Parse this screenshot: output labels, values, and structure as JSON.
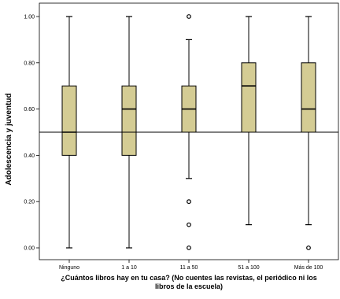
{
  "chart_data": {
    "type": "boxplot",
    "title": "",
    "xlabel": "¿Cuántos libros hay en tu casa? (No cuentes las revistas, el periódico ni los libros de la escuela)",
    "xlabel_lines": [
      "¿Cuántos libros hay en tu casa? (No cuentes las revistas, el periódico ni los",
      "libros de la escuela)"
    ],
    "ylabel": "Adolescencia y juventud",
    "ylim": [
      0,
      1.0
    ],
    "yticks": [
      0.0,
      0.2,
      0.4,
      0.6,
      0.8,
      1.0
    ],
    "ytick_labels": [
      "0.00",
      "0.20",
      "0.40",
      "0.60",
      "0.80",
      "1.00"
    ],
    "reference_line": 0.5,
    "grid": false,
    "box_color": "#d4cc94",
    "categories": [
      "Ninguno",
      "1 a 10",
      "11 a 50",
      "51 a 100",
      "Más de 100"
    ],
    "boxes": [
      {
        "category": "Ninguno",
        "whisker_low": 0.0,
        "q1": 0.4,
        "median": 0.5,
        "q3": 0.7,
        "whisker_high": 1.0,
        "outliers": []
      },
      {
        "category": "1 a 10",
        "whisker_low": 0.0,
        "q1": 0.4,
        "median": 0.6,
        "q3": 0.7,
        "whisker_high": 1.0,
        "outliers": []
      },
      {
        "category": "11 a 50",
        "whisker_low": 0.3,
        "q1": 0.5,
        "median": 0.6,
        "q3": 0.7,
        "whisker_high": 0.9,
        "outliers": [
          0.0,
          0.1,
          0.2,
          1.0
        ]
      },
      {
        "category": "51 a 100",
        "whisker_low": 0.1,
        "q1": 0.5,
        "median": 0.7,
        "q3": 0.8,
        "whisker_high": 1.0,
        "outliers": []
      },
      {
        "category": "Más de 100",
        "whisker_low": 0.1,
        "q1": 0.5,
        "median": 0.6,
        "q3": 0.8,
        "whisker_high": 1.0,
        "outliers": [
          0.0
        ]
      }
    ]
  }
}
